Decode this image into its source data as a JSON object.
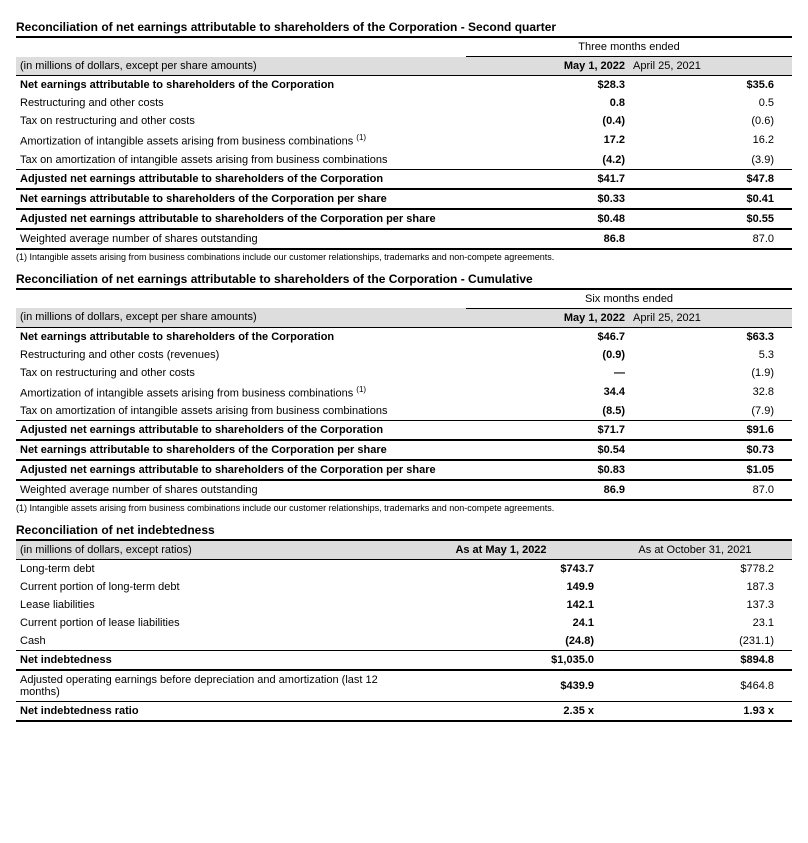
{
  "table1": {
    "title": "Reconciliation of net earnings attributable to shareholders of the Corporation - Second quarter",
    "period_header": "Three months ended",
    "unit_label": "(in millions of dollars, except per share amounts)",
    "col1": "May 1, 2022",
    "col2": "April 25, 2021",
    "rows": [
      {
        "label": "Net earnings attributable to shareholders of the Corporation",
        "v1": "$28.3",
        "v2": "$35.6",
        "bold": true,
        "topthin": false
      },
      {
        "label": "Restructuring and other costs",
        "v1": "0.8",
        "v2": "0.5"
      },
      {
        "label": "Tax on restructuring and other costs",
        "v1": "(0.4)",
        "v2": "(0.6)"
      },
      {
        "label": "Amortization of intangible assets arising from business combinations (1)",
        "sup": "(1)",
        "plain": "Amortization of intangible assets arising from business combinations ",
        "v1": "17.2",
        "v2": "16.2"
      },
      {
        "label": "Tax on amortization of intangible assets arising from business combinations",
        "v1": "(4.2)",
        "v2": "(3.9)"
      },
      {
        "label": "Adjusted net earnings attributable to shareholders of the Corporation",
        "v1": "$41.7",
        "v2": "$47.8",
        "bold": true,
        "topthin": true,
        "botthick": true
      },
      {
        "label": "Net earnings attributable to shareholders of the Corporation per share",
        "v1": "$0.33",
        "v2": "$0.41",
        "bold": true,
        "botthick": true
      },
      {
        "label": "Adjusted net earnings attributable to shareholders of the Corporation per share",
        "v1": "$0.48",
        "v2": "$0.55",
        "bold": true,
        "botthick": true
      },
      {
        "label": "Weighted average number of shares outstanding",
        "v1": "86.8",
        "v2": "87.0",
        "botthick": true
      }
    ],
    "footnote": "(1) Intangible assets arising from business combinations include our customer relationships, trademarks and non-compete agreements."
  },
  "table2": {
    "title": "Reconciliation of net earnings attributable to shareholders of the Corporation - Cumulative",
    "period_header": "Six months ended",
    "unit_label": "(in millions of dollars, except per share amounts)",
    "col1": "May 1, 2022",
    "col2": "April 25, 2021",
    "rows": [
      {
        "label": "Net earnings attributable to shareholders of the Corporation",
        "v1": "$46.7",
        "v2": "$63.3",
        "bold": true
      },
      {
        "label": "Restructuring and other costs (revenues)",
        "v1": "(0.9)",
        "v2": "5.3"
      },
      {
        "label": "Tax on restructuring and other costs",
        "v1": "—",
        "v2": "(1.9)"
      },
      {
        "label": "Amortization of intangible assets arising from business combinations (1)",
        "sup": "(1)",
        "plain": "Amortization of intangible assets arising from business combinations ",
        "v1": "34.4",
        "v2": "32.8"
      },
      {
        "label": "Tax on amortization of intangible assets arising from business combinations",
        "v1": "(8.5)",
        "v2": "(7.9)"
      },
      {
        "label": "Adjusted net earnings attributable to shareholders of the Corporation",
        "v1": "$71.7",
        "v2": "$91.6",
        "bold": true,
        "topthin": true,
        "botthick": true
      },
      {
        "label": "Net earnings attributable to shareholders of the Corporation per share",
        "v1": "$0.54",
        "v2": "$0.73",
        "bold": true,
        "botthick": true
      },
      {
        "label": "Adjusted net earnings attributable to shareholders of the Corporation per share",
        "v1": "$0.83",
        "v2": "$1.05",
        "bold": true,
        "botthick": true
      },
      {
        "label": "Weighted average number of shares outstanding",
        "v1": "86.9",
        "v2": "87.0",
        "botthick": true
      }
    ],
    "footnote": "(1) Intangible assets arising from business combinations include our customer relationships, trademarks and non-compete agreements."
  },
  "table3": {
    "title": "Reconciliation of net indebtedness",
    "unit_label": "(in millions of dollars, except ratios)",
    "col1": "As at May 1, 2022",
    "col2": "As at October 31, 2021",
    "rows": [
      {
        "label": "Long-term debt",
        "v1": "$743.7",
        "v2": "$778.2"
      },
      {
        "label": "Current portion of long-term debt",
        "v1": "149.9",
        "v2": "187.3"
      },
      {
        "label": "Lease liabilities",
        "v1": "142.1",
        "v2": "137.3"
      },
      {
        "label": "Current portion of lease liabilities",
        "v1": "24.1",
        "v2": "23.1"
      },
      {
        "label": "Cash",
        "v1": "(24.8)",
        "v2": "(231.1)"
      },
      {
        "label": "Net indebtedness",
        "v1": "$1,035.0",
        "v2": "$894.8",
        "bold": true,
        "topthin": true,
        "botthick": true
      },
      {
        "label": "Adjusted operating earnings before depreciation and amortization (last 12 months)",
        "v1": "$439.9",
        "v2": "$464.8",
        "botthin": true
      },
      {
        "label": "Net indebtedness ratio",
        "v1": "2.35  x",
        "v2": "1.93  x",
        "bold": true,
        "botthick": true
      }
    ]
  },
  "colors": {
    "header_bg": "#dddddd",
    "text": "#000000",
    "bg": "#ffffff"
  }
}
